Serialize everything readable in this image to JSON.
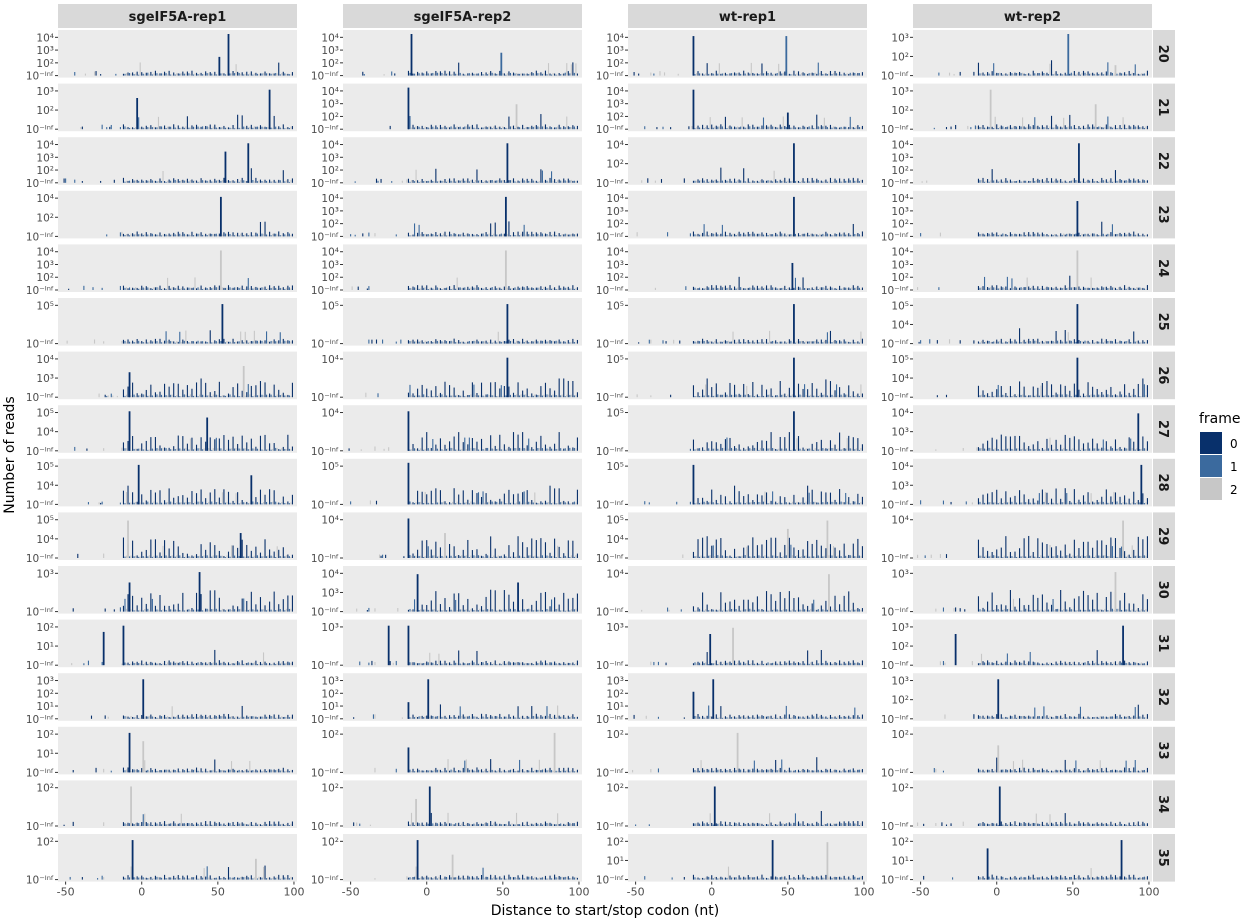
{
  "chart_data": {
    "type": "bar",
    "facet_layout": "grid",
    "x_label": "Distance to start/stop codon (nt)",
    "y_label": "Number of reads",
    "y_scale": "log10",
    "xlim": [
      -55,
      102
    ],
    "x_ticks": [
      -50,
      0,
      50,
      100
    ],
    "x_tick_labels": [
      "-50",
      "0",
      "50",
      "100"
    ],
    "columns": [
      "sgeIF5A-rep1",
      "sgeIF5A-rep2",
      "wt-rep1",
      "wt-rep2"
    ],
    "rows": [
      "20",
      "21",
      "22",
      "23",
      "24",
      "25",
      "26",
      "27",
      "28",
      "29",
      "30",
      "31",
      "32",
      "33",
      "34",
      "35"
    ],
    "legend": {
      "title": "frame",
      "position": "right",
      "items": [
        {
          "label": "0",
          "color": "#08306b"
        },
        {
          "label": "1",
          "color": "#3b6a9e"
        },
        {
          "label": "2",
          "color": "#c7c7c7"
        }
      ]
    },
    "y_tick_labels": [
      [
        [
          "10⁻ᴵⁿᶠ",
          "10²",
          "10³",
          "10⁴"
        ],
        [
          "10⁻ᴵⁿᶠ",
          "10²",
          "10³",
          "10⁴"
        ],
        [
          "10⁻ᴵⁿᶠ",
          "10²",
          "10³",
          "10⁴"
        ],
        [
          "10⁻ᴵⁿᶠ",
          "10²",
          "10³"
        ]
      ],
      [
        [
          "10⁻ᴵⁿᶠ",
          "10²",
          "10³"
        ],
        [
          "10⁻ᴵⁿᶠ",
          "10²",
          "10³",
          "10⁴"
        ],
        [
          "10⁻ᴵⁿᶠ",
          "10²",
          "10³",
          "10⁴"
        ],
        [
          "10⁻ᴵⁿᶠ",
          "10²",
          "10³"
        ]
      ],
      [
        [
          "10⁻ᴵⁿᶠ",
          "10²",
          "10³",
          "10⁴"
        ],
        [
          "10⁻ᴵⁿᶠ",
          "10²",
          "10³",
          "10⁴"
        ],
        [
          "10⁻ᴵⁿᶠ",
          "10²",
          "10⁴"
        ],
        [
          "10⁻ᴵⁿᶠ",
          "10²",
          "10³",
          "10⁴"
        ]
      ],
      [
        [
          "10⁻ᴵⁿᶠ",
          "10²",
          "10⁴"
        ],
        [
          "10⁻ᴵⁿᶠ",
          "10²",
          "10³",
          "10⁴"
        ],
        [
          "10⁻ᴵⁿᶠ",
          "10²",
          "10³",
          "10⁴"
        ],
        [
          "10⁻ᴵⁿᶠ",
          "10²",
          "10³",
          "10⁴"
        ]
      ],
      [
        [
          "10⁻ᴵⁿᶠ",
          "10²",
          "10³",
          "10⁴"
        ],
        [
          "10⁻ᴵⁿᶠ",
          "10²",
          "10³",
          "10⁴"
        ],
        [
          "10⁻ᴵⁿᶠ",
          "10²",
          "10³",
          "10⁴"
        ],
        [
          "10⁻ᴵⁿᶠ",
          "10²",
          "10³",
          "10⁴"
        ]
      ],
      [
        [
          "10⁻ᴵⁿᶠ",
          "10⁵"
        ],
        [
          "10⁻ᴵⁿᶠ",
          "10⁵"
        ],
        [
          "10⁻ᴵⁿᶠ",
          "10⁵"
        ],
        [
          "10⁻ᴵⁿᶠ",
          "10⁴",
          "10⁵"
        ]
      ],
      [
        [
          "10⁻ᴵⁿᶠ",
          "10³",
          "10⁴"
        ],
        [
          "10⁻ᴵⁿᶠ",
          "10⁴"
        ],
        [
          "10⁻ᴵⁿᶠ",
          "10⁵"
        ],
        [
          "10⁻ᴵⁿᶠ",
          "10⁴",
          "10⁵"
        ]
      ],
      [
        [
          "10⁻ᴵⁿᶠ",
          "10⁴",
          "10⁵"
        ],
        [
          "10⁻ᴵⁿᶠ",
          "10⁴"
        ],
        [
          "10⁻ᴵⁿᶠ",
          "10⁵"
        ],
        [
          "10⁻ᴵⁿᶠ",
          "10³",
          "10⁴"
        ]
      ],
      [
        [
          "10⁻ᴵⁿᶠ",
          "10⁴",
          "10⁵"
        ],
        [
          "10⁻ᴵⁿᶠ",
          "10⁵"
        ],
        [
          "10⁻ᴵⁿᶠ",
          "10⁵"
        ],
        [
          "10⁻ᴵⁿᶠ",
          "10³",
          "10⁴"
        ]
      ],
      [
        [
          "10⁻ᴵⁿᶠ",
          "10⁴",
          "10⁵"
        ],
        [
          "10⁻ᴵⁿᶠ",
          "10⁴"
        ],
        [
          "10⁻ᴵⁿᶠ",
          "10⁴",
          "10⁵"
        ],
        [
          "10⁻ᴵⁿᶠ",
          "10⁴"
        ]
      ],
      [
        [
          "10⁻ᴵⁿᶠ",
          "10³"
        ],
        [
          "10⁻ᴵⁿᶠ",
          "10³",
          "10⁴"
        ],
        [
          "10⁻ᴵⁿᶠ",
          "10⁴"
        ],
        [
          "10⁻ᴵⁿᶠ",
          "10³"
        ]
      ],
      [
        [
          "10⁻ᴵⁿᶠ",
          "10¹",
          "10²"
        ],
        [
          "10⁻ᴵⁿᶠ",
          "10³"
        ],
        [
          "10⁻ᴵⁿᶠ",
          "10³"
        ],
        [
          "10⁻ᴵⁿᶠ",
          "10²",
          "10³"
        ]
      ],
      [
        [
          "10⁻ᴵⁿᶠ",
          "10¹",
          "10²",
          "10³"
        ],
        [
          "10⁻ᴵⁿᶠ",
          "10¹",
          "10²",
          "10³"
        ],
        [
          "10⁻ᴵⁿᶠ",
          "10¹",
          "10²",
          "10³"
        ],
        [
          "10⁻ᴵⁿᶠ",
          "10²",
          "10³"
        ]
      ],
      [
        [
          "10⁻ᴵⁿᶠ",
          "10¹",
          "10²"
        ],
        [
          "10⁻ᴵⁿᶠ",
          "10²"
        ],
        [
          "10⁻ᴵⁿᶠ",
          "10²"
        ],
        [
          "10⁻ᴵⁿᶠ",
          "10²"
        ]
      ],
      [
        [
          "10⁻ᴵⁿᶠ",
          "10²"
        ],
        [
          "10⁻ᴵⁿᶠ",
          "10²"
        ],
        [
          "10⁻ᴵⁿᶠ",
          "10²"
        ],
        [
          "10⁻ᴵⁿᶠ",
          "10²"
        ]
      ],
      [
        [
          "10⁻ᴵⁿᶠ",
          "10²"
        ],
        [
          "10⁻ᴵⁿᶠ",
          "10²"
        ],
        [
          "10⁻ᴵⁿᶠ",
          "10¹",
          "10²"
        ],
        [
          "10⁻ᴵⁿᶠ",
          "10¹",
          "10²"
        ]
      ]
    ],
    "peaks": [
      [
        [
          {
            "x": 57,
            "f": 0,
            "y": 1.0
          },
          {
            "x": 51,
            "f": 0,
            "y": 0.45
          }
        ],
        [
          {
            "x": -10,
            "f": 0,
            "y": 1.0
          },
          {
            "x": 49,
            "f": 1,
            "y": 0.55
          }
        ],
        [
          {
            "x": -12,
            "f": 0,
            "y": 0.95
          },
          {
            "x": 49,
            "f": 1,
            "y": 0.95
          }
        ],
        [
          {
            "x": 47,
            "f": 1,
            "y": 1.0
          },
          {
            "x": 78,
            "f": 2,
            "y": 0.25
          }
        ]
      ],
      [
        [
          {
            "x": 84,
            "f": 0,
            "y": 0.95
          },
          {
            "x": -3,
            "f": 0,
            "y": 0.75
          }
        ],
        [
          {
            "x": -12,
            "f": 0,
            "y": 1.0
          },
          {
            "x": 59,
            "f": 2,
            "y": 0.6
          }
        ],
        [
          {
            "x": -12,
            "f": 0,
            "y": 0.95
          },
          {
            "x": 50,
            "f": 0,
            "y": 0.4
          }
        ],
        [
          {
            "x": -4,
            "f": 2,
            "y": 0.95
          },
          {
            "x": 65,
            "f": 2,
            "y": 0.6
          }
        ]
      ],
      [
        [
          {
            "x": 70,
            "f": 0,
            "y": 0.95
          },
          {
            "x": 55,
            "f": 0,
            "y": 0.75
          }
        ],
        [
          {
            "x": 53,
            "f": 0,
            "y": 0.95
          }
        ],
        [
          {
            "x": 54,
            "f": 0,
            "y": 0.95
          }
        ],
        [
          {
            "x": 54,
            "f": 0,
            "y": 0.95
          }
        ]
      ],
      [
        [
          {
            "x": 52,
            "f": 0,
            "y": 0.95
          }
        ],
        [
          {
            "x": 52,
            "f": 0,
            "y": 0.95
          }
        ],
        [
          {
            "x": 54,
            "f": 0,
            "y": 0.95
          }
        ],
        [
          {
            "x": 53,
            "f": 0,
            "y": 0.85
          }
        ]
      ],
      [
        [
          {
            "x": 52,
            "f": 2,
            "y": 0.95
          }
        ],
        [
          {
            "x": 52,
            "f": 2,
            "y": 0.95
          }
        ],
        [
          {
            "x": 53,
            "f": 0,
            "y": 0.65
          }
        ],
        [
          {
            "x": 53,
            "f": 2,
            "y": 0.95
          }
        ]
      ],
      [
        [
          {
            "x": 53,
            "f": 0,
            "y": 0.95
          }
        ],
        [
          {
            "x": 53,
            "f": 0,
            "y": 0.95
          }
        ],
        [
          {
            "x": 54,
            "f": 0,
            "y": 0.95
          }
        ],
        [
          {
            "x": 53,
            "f": 0,
            "y": 0.95
          }
        ]
      ],
      [
        [
          {
            "x": 67,
            "f": 2,
            "y": 0.75
          },
          {
            "x": -8,
            "f": 0,
            "y": 0.6
          }
        ],
        [
          {
            "x": 53,
            "f": 0,
            "y": 0.95
          }
        ],
        [
          {
            "x": 54,
            "f": 0,
            "y": 0.95
          }
        ],
        [
          {
            "x": 53,
            "f": 0,
            "y": 0.95
          }
        ]
      ],
      [
        [
          {
            "x": -8,
            "f": 0,
            "y": 0.95
          },
          {
            "x": 43,
            "f": 0,
            "y": 0.8
          }
        ],
        [
          {
            "x": -12,
            "f": 0,
            "y": 0.95
          }
        ],
        [
          {
            "x": 54,
            "f": 0,
            "y": 0.95
          }
        ],
        [
          {
            "x": 93,
            "f": 0,
            "y": 0.9
          }
        ]
      ],
      [
        [
          {
            "x": -2,
            "f": 0,
            "y": 0.95
          },
          {
            "x": 72,
            "f": 0,
            "y": 0.7
          }
        ],
        [
          {
            "x": -12,
            "f": 0,
            "y": 1.0
          }
        ],
        [
          {
            "x": -12,
            "f": 0,
            "y": 0.95
          }
        ],
        [
          {
            "x": 95,
            "f": 0,
            "y": 0.95
          }
        ]
      ],
      [
        [
          {
            "x": -9,
            "f": 2,
            "y": 0.9
          },
          {
            "x": 65,
            "f": 0,
            "y": 0.6
          }
        ],
        [
          {
            "x": -12,
            "f": 0,
            "y": 0.95
          },
          {
            "x": 12,
            "f": 2,
            "y": 0.6
          }
        ],
        [
          {
            "x": 76,
            "f": 2,
            "y": 0.9
          },
          {
            "x": 50,
            "f": 2,
            "y": 0.7
          }
        ],
        [
          {
            "x": 83,
            "f": 2,
            "y": 0.9
          }
        ]
      ],
      [
        [
          {
            "x": 38,
            "f": 0,
            "y": 0.95
          },
          {
            "x": -8,
            "f": 0,
            "y": 0.7
          }
        ],
        [
          {
            "x": -6,
            "f": 0,
            "y": 0.9
          },
          {
            "x": 60,
            "f": 0,
            "y": 0.7
          }
        ],
        [
          {
            "x": 77,
            "f": 2,
            "y": 0.9
          }
        ],
        [
          {
            "x": 78,
            "f": 2,
            "y": 0.95
          }
        ]
      ],
      [
        [
          {
            "x": -12,
            "f": 0,
            "y": 0.95
          },
          {
            "x": -25,
            "f": 0,
            "y": 0.8
          }
        ],
        [
          {
            "x": -25,
            "f": 0,
            "y": 0.95
          },
          {
            "x": -12,
            "f": 0,
            "y": 0.95
          }
        ],
        [
          {
            "x": 14,
            "f": 2,
            "y": 0.9
          },
          {
            "x": -1,
            "f": 0,
            "y": 0.75
          }
        ],
        [
          {
            "x": 83,
            "f": 0,
            "y": 0.95
          },
          {
            "x": -27,
            "f": 0,
            "y": 0.75
          }
        ]
      ],
      [
        [
          {
            "x": 1,
            "f": 0,
            "y": 0.95
          }
        ],
        [
          {
            "x": 1,
            "f": 0,
            "y": 0.95
          },
          {
            "x": -12,
            "f": 0,
            "y": 0.4
          }
        ],
        [
          {
            "x": 1,
            "f": 0,
            "y": 0.95
          },
          {
            "x": -12,
            "f": 0,
            "y": 0.65
          }
        ],
        [
          {
            "x": 1,
            "f": 0,
            "y": 0.95
          }
        ]
      ],
      [
        [
          {
            "x": -8,
            "f": 0,
            "y": 0.95
          },
          {
            "x": 1,
            "f": 2,
            "y": 0.75
          }
        ],
        [
          {
            "x": 84,
            "f": 2,
            "y": 0.95
          },
          {
            "x": -12,
            "f": 0,
            "y": 0.6
          }
        ],
        [
          {
            "x": 17,
            "f": 2,
            "y": 0.95
          }
        ],
        [
          {
            "x": 1,
            "f": 2,
            "y": 0.65
          }
        ]
      ],
      [
        [
          {
            "x": -7,
            "f": 2,
            "y": 0.95
          }
        ],
        [
          {
            "x": 2,
            "f": 0,
            "y": 0.95
          },
          {
            "x": -7,
            "f": 2,
            "y": 0.65
          }
        ],
        [
          {
            "x": 2,
            "f": 0,
            "y": 0.95
          }
        ],
        [
          {
            "x": 2,
            "f": 0,
            "y": 0.95
          }
        ]
      ],
      [
        [
          {
            "x": -6,
            "f": 0,
            "y": 0.95
          },
          {
            "x": 75,
            "f": 2,
            "y": 0.5
          }
        ],
        [
          {
            "x": -6,
            "f": 0,
            "y": 0.95
          },
          {
            "x": 17,
            "f": 2,
            "y": 0.6
          }
        ],
        [
          {
            "x": 40,
            "f": 0,
            "y": 0.95
          },
          {
            "x": 76,
            "f": 2,
            "y": 0.9
          }
        ],
        [
          {
            "x": 82,
            "f": 0,
            "y": 0.95
          },
          {
            "x": -6,
            "f": 0,
            "y": 0.75
          }
        ]
      ]
    ]
  }
}
